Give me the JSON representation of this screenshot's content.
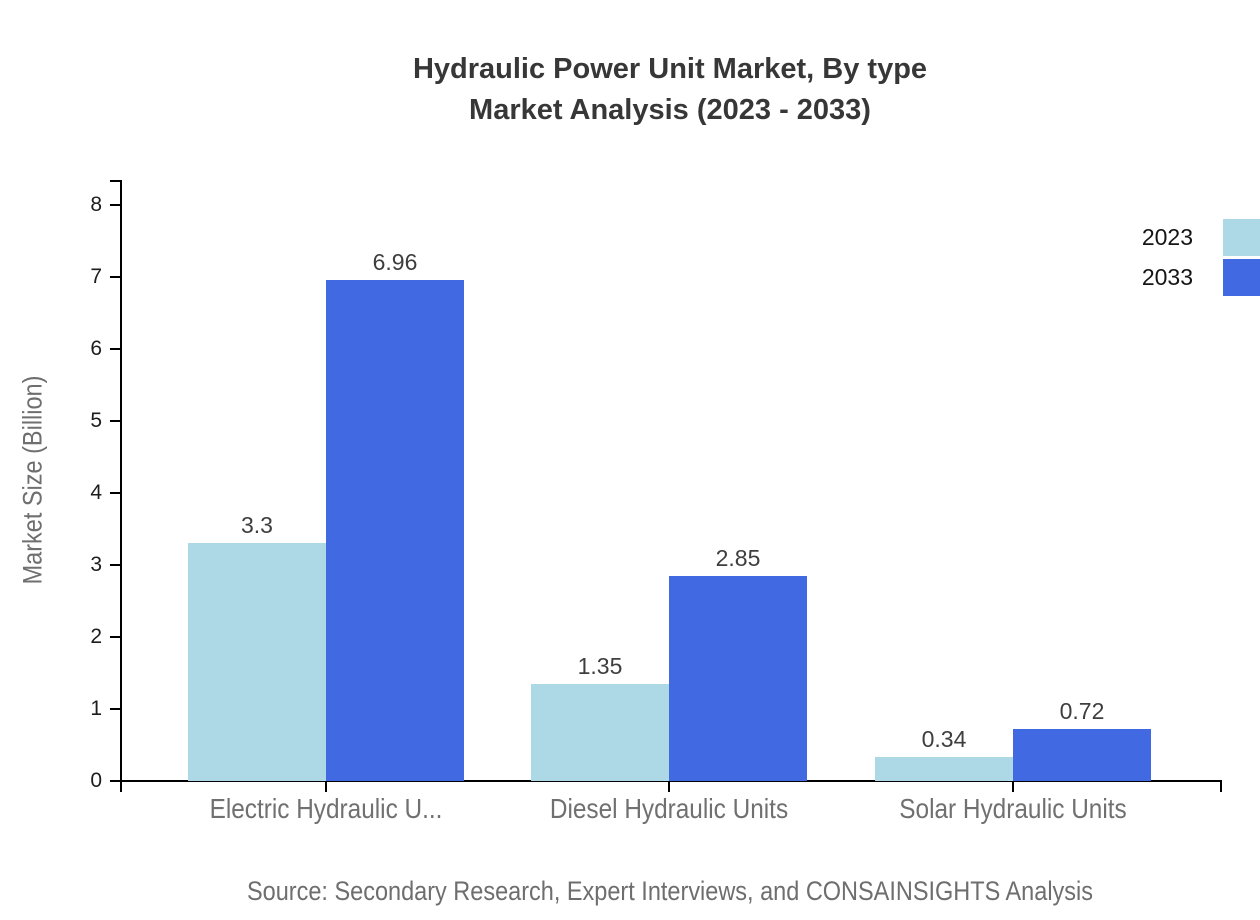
{
  "title": {
    "line1": "Hydraulic Power Unit Market, By type",
    "line2": "Market Analysis (2023 - 2033)"
  },
  "source": "Source: Secondary Research, Expert Interviews, and CONSAINSIGHTS Analysis",
  "chart_data": {
    "type": "bar",
    "title": "Hydraulic Power Unit Market, By type Market Analysis (2023 - 2033)",
    "categories": [
      "Electric Hydraulic U...",
      "Diesel Hydraulic Units",
      "Solar Hydraulic Units"
    ],
    "series": [
      {
        "name": "2023",
        "color": "#ADD8E6",
        "values": [
          3.3,
          1.35,
          0.34
        ]
      },
      {
        "name": "2033",
        "color": "#4169E1",
        "values": [
          6.96,
          2.85,
          0.72
        ]
      }
    ],
    "xlabel": "",
    "ylabel": "Market Size (Billion)",
    "ylim": [
      0,
      8
    ],
    "yticks": [
      0,
      1,
      2,
      3,
      4,
      5,
      6,
      7,
      8
    ],
    "grid": false,
    "value_labels": true,
    "legend_position": "top-right"
  },
  "colors": {
    "axis": "#000000",
    "title_text": "#373737",
    "category_text": "#707070",
    "tick_text": "#1d1d1d",
    "value_text": "#3e3e3e",
    "series_2023": "#ADD8E6",
    "series_2033": "#4169E1"
  }
}
